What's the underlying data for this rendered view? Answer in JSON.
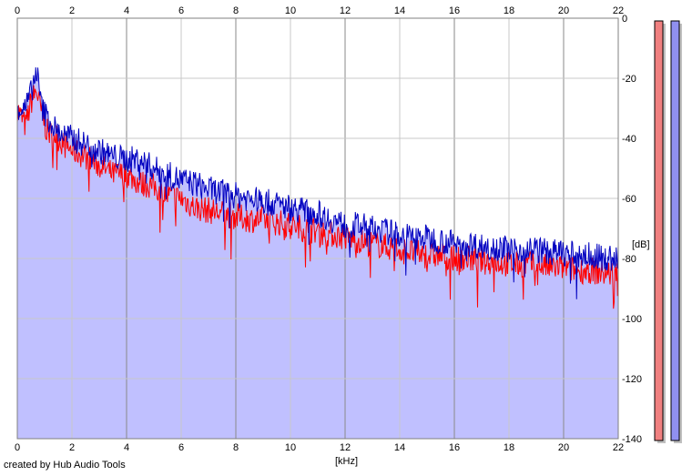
{
  "footer": {
    "credit": "created by Hub Audio Tools"
  },
  "colors": {
    "background": "#ffffff",
    "fill": "#c0c0ff",
    "grid_light": "#c8c8c8",
    "grid_dark": "#8a8a8a",
    "series_red": "#ff0000",
    "series_blue": "#0000c0",
    "meter_left": "#f08080",
    "meter_right": "#9090f0"
  },
  "chart_data": {
    "type": "area",
    "xlabel": "[kHz]",
    "ylabel": "[dB]",
    "xlim": [
      0,
      22
    ],
    "ylim": [
      -140,
      0
    ],
    "x_ticks": [
      0,
      2,
      4,
      6,
      8,
      10,
      12,
      14,
      16,
      18,
      20,
      22
    ],
    "y_ticks": [
      0,
      -20,
      -40,
      -60,
      -80,
      -100,
      -120,
      -140
    ],
    "grid": true,
    "series": [
      {
        "color": "#ff0000",
        "x": [
          0,
          0.3,
          0.5,
          0.7,
          0.9,
          1.1,
          1.4,
          1.7,
          2.0,
          2.5,
          3.0,
          3.5,
          4.0,
          4.5,
          5.0,
          5.5,
          6.0,
          6.5,
          7.0,
          7.5,
          8.0,
          8.5,
          9.0,
          9.5,
          10.0,
          10.5,
          11.0,
          11.5,
          12.0,
          12.5,
          13.0,
          13.5,
          14.0,
          14.5,
          15.0,
          15.5,
          16.0,
          16.5,
          17.0,
          17.5,
          18.0,
          18.5,
          19.0,
          19.5,
          20.0,
          20.5,
          21.0,
          21.5,
          22.0
        ],
        "values": [
          -30,
          -36,
          -28,
          -24,
          -32,
          -38,
          -39,
          -42,
          -44,
          -46,
          -49,
          -52,
          -52,
          -55,
          -56,
          -59,
          -60,
          -63,
          -64,
          -65,
          -66,
          -67,
          -67,
          -68,
          -69,
          -70,
          -71,
          -72,
          -73,
          -74,
          -75,
          -76,
          -77,
          -78,
          -79,
          -79,
          -80,
          -80,
          -81,
          -81,
          -82,
          -82,
          -82,
          -83,
          -83,
          -84,
          -84,
          -85,
          -85
        ]
      },
      {
        "color": "#0000c0",
        "x": [
          0,
          0.3,
          0.5,
          0.7,
          0.9,
          1.1,
          1.4,
          1.7,
          2.0,
          2.5,
          3.0,
          3.5,
          4.0,
          4.5,
          5.0,
          5.5,
          6.0,
          6.5,
          7.0,
          7.5,
          8.0,
          8.5,
          9.0,
          9.5,
          10.0,
          10.5,
          11.0,
          11.5,
          12.0,
          12.5,
          13.0,
          13.5,
          14.0,
          14.5,
          15.0,
          15.5,
          16.0,
          16.5,
          17.0,
          17.5,
          18.0,
          18.5,
          19.0,
          19.5,
          20.0,
          20.5,
          21.0,
          21.5,
          22.0
        ],
        "values": [
          -30,
          -30,
          -25,
          -17,
          -30,
          -33,
          -37,
          -39,
          -40,
          -42,
          -44,
          -46,
          -47,
          -47,
          -50,
          -52,
          -54,
          -55,
          -57,
          -58,
          -59,
          -60,
          -61,
          -62,
          -63,
          -64,
          -65,
          -67,
          -69,
          -69,
          -70,
          -71,
          -72,
          -73,
          -73,
          -74,
          -75,
          -75,
          -76,
          -76,
          -77,
          -77,
          -77,
          -78,
          -78,
          -79,
          -79,
          -80,
          -80
        ]
      }
    ]
  }
}
